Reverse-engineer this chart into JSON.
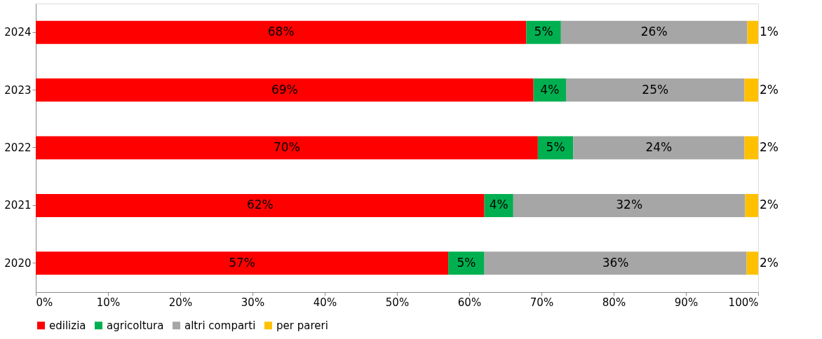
{
  "chart_data": {
    "type": "bar",
    "orientation": "horizontal",
    "stacked": true,
    "categories": [
      "2024",
      "2023",
      "2022",
      "2021",
      "2020"
    ],
    "series": [
      {
        "name": "edilizia",
        "color": "#ff0000",
        "values": [
          67.9,
          68.9,
          69.5,
          62.1,
          57.1
        ],
        "value_labels": [
          "68%",
          "69%",
          "70%",
          "62%",
          "57%"
        ]
      },
      {
        "name": "agricoltura",
        "color": "#00b050",
        "values": [
          4.8,
          4.5,
          4.9,
          4.0,
          5.0
        ],
        "value_labels": [
          "5%",
          "4%",
          "5%",
          "4%",
          "5%"
        ]
      },
      {
        "name": "altri comparti",
        "color": "#a6a6a6",
        "values": [
          25.8,
          24.7,
          23.7,
          32.1,
          36.3
        ],
        "value_labels": [
          "26%",
          "25%",
          "24%",
          "32%",
          "36%"
        ]
      },
      {
        "name": "per pareri",
        "color": "#ffc000",
        "values": [
          1.5,
          1.9,
          1.9,
          1.8,
          1.6
        ],
        "value_labels": [
          "1%",
          "2%",
          "2%",
          "2%",
          "2%"
        ]
      }
    ],
    "xlim": [
      0,
      100
    ],
    "xticks": [
      {
        "value": 0,
        "label": "0%"
      },
      {
        "value": 10,
        "label": "10%"
      },
      {
        "value": 20,
        "label": "20%"
      },
      {
        "value": 30,
        "label": "30%"
      },
      {
        "value": 40,
        "label": "40%"
      },
      {
        "value": 50,
        "label": "50%"
      },
      {
        "value": 60,
        "label": "60%"
      },
      {
        "value": 70,
        "label": "70%"
      },
      {
        "value": 80,
        "label": "80%"
      },
      {
        "value": 90,
        "label": "90%"
      },
      {
        "value": 100,
        "label": "100%"
      }
    ],
    "grid": false,
    "legend": "bottom"
  }
}
